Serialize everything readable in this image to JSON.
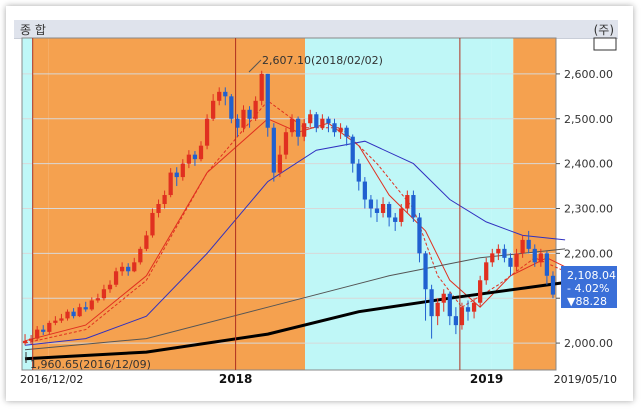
{
  "header": {
    "left_title": "종  합",
    "right_unit": "(주)",
    "icon_name": "lock-icon"
  },
  "annotations": {
    "high": "2,607.10(2018/02/02)",
    "low": "1,960.65(2016/12/09)"
  },
  "value_badge": {
    "price": "2,108.04",
    "change_pct": "- 4.02%",
    "change": "▼88.28",
    "color": "#3a6fd8"
  },
  "colors": {
    "orange_band": "#f5a14f",
    "cyan_band": "#bff7f7",
    "up": "#e03020",
    "down": "#2060d0",
    "ma_red": "#e03020",
    "ma_blue": "#3030c0",
    "ma_gray": "#555555",
    "ma_black": "#000000"
  },
  "chart_data": {
    "type": "candlestick",
    "title": "",
    "y_ticks": [
      "2,600.00",
      "2,500.00",
      "2,400.00",
      "2,300.00",
      "2,200.00",
      "2,100.00",
      "2,000.00"
    ],
    "y_tick_values": [
      2600,
      2500,
      2400,
      2300,
      2200,
      2100,
      2000
    ],
    "ylim": [
      1940,
      2680
    ],
    "x_labels": [
      {
        "text": "2016/12/02",
        "bold": false,
        "pos": 0.0
      },
      {
        "text": "2018",
        "bold": true,
        "pos": 0.4
      },
      {
        "text": "2019",
        "bold": true,
        "pos": 0.87
      },
      {
        "text": "2019/05/10",
        "bold": false,
        "pos": 1.0
      }
    ],
    "bands": [
      {
        "from": 0.0,
        "to": 0.02,
        "color": "cyan"
      },
      {
        "from": 0.02,
        "to": 0.05,
        "color": "orange"
      },
      {
        "from": 0.05,
        "to": 0.53,
        "color": "orange"
      },
      {
        "from": 0.53,
        "to": 0.88,
        "color": "cyan"
      },
      {
        "from": 0.88,
        "to": 0.92,
        "color": "cyan"
      },
      {
        "from": 0.92,
        "to": 1.0,
        "color": "orange"
      }
    ],
    "vlines": [
      0.02,
      0.4,
      0.82
    ],
    "candles": [
      [
        2000,
        2005,
        2020,
        1995
      ],
      [
        2005,
        2010,
        2018,
        1998
      ],
      [
        2010,
        2030,
        2038,
        2005
      ],
      [
        2030,
        2025,
        2040,
        2018
      ],
      [
        2025,
        2045,
        2050,
        2020
      ],
      [
        2045,
        2050,
        2060,
        2040
      ],
      [
        2050,
        2055,
        2065,
        2045
      ],
      [
        2055,
        2070,
        2075,
        2050
      ],
      [
        2070,
        2060,
        2078,
        2055
      ],
      [
        2060,
        2080,
        2088,
        2058
      ],
      [
        2080,
        2075,
        2092,
        2070
      ],
      [
        2075,
        2095,
        2102,
        2072
      ],
      [
        2095,
        2100,
        2110,
        2090
      ],
      [
        2100,
        2120,
        2130,
        2095
      ],
      [
        2120,
        2130,
        2140,
        2112
      ],
      [
        2130,
        2160,
        2168,
        2125
      ],
      [
        2160,
        2170,
        2180,
        2150
      ],
      [
        2170,
        2160,
        2178,
        2150
      ],
      [
        2160,
        2180,
        2190,
        2158
      ],
      [
        2180,
        2210,
        2215,
        2175
      ],
      [
        2210,
        2240,
        2250,
        2205
      ],
      [
        2240,
        2290,
        2300,
        2235
      ],
      [
        2290,
        2310,
        2320,
        2280
      ],
      [
        2310,
        2330,
        2340,
        2300
      ],
      [
        2330,
        2380,
        2390,
        2325
      ],
      [
        2380,
        2370,
        2392,
        2350
      ],
      [
        2370,
        2400,
        2410,
        2362
      ],
      [
        2400,
        2420,
        2430,
        2390
      ],
      [
        2420,
        2410,
        2428,
        2395
      ],
      [
        2410,
        2440,
        2450,
        2405
      ],
      [
        2440,
        2500,
        2510,
        2432
      ],
      [
        2500,
        2540,
        2555,
        2495
      ],
      [
        2540,
        2560,
        2570,
        2530
      ],
      [
        2560,
        2550,
        2570,
        2530
      ],
      [
        2550,
        2500,
        2555,
        2490
      ],
      [
        2500,
        2480,
        2510,
        2460
      ],
      [
        2480,
        2520,
        2530,
        2470
      ],
      [
        2520,
        2500,
        2528,
        2480
      ],
      [
        2500,
        2540,
        2550,
        2495
      ],
      [
        2540,
        2600,
        2607,
        2530
      ],
      [
        2600,
        2480,
        2600,
        2460
      ],
      [
        2480,
        2380,
        2490,
        2360
      ],
      [
        2380,
        2420,
        2440,
        2370
      ],
      [
        2420,
        2470,
        2480,
        2410
      ],
      [
        2470,
        2500,
        2510,
        2460
      ],
      [
        2500,
        2460,
        2505,
        2440
      ],
      [
        2460,
        2490,
        2500,
        2450
      ],
      [
        2490,
        2510,
        2520,
        2480
      ],
      [
        2510,
        2480,
        2515,
        2470
      ],
      [
        2480,
        2500,
        2510,
        2475
      ],
      [
        2500,
        2490,
        2505,
        2470
      ],
      [
        2490,
        2470,
        2500,
        2460
      ],
      [
        2470,
        2480,
        2490,
        2455
      ],
      [
        2480,
        2460,
        2485,
        2440
      ],
      [
        2460,
        2400,
        2465,
        2380
      ],
      [
        2400,
        2360,
        2410,
        2340
      ],
      [
        2360,
        2320,
        2370,
        2300
      ],
      [
        2320,
        2300,
        2330,
        2280
      ],
      [
        2300,
        2290,
        2320,
        2270
      ],
      [
        2290,
        2310,
        2325,
        2280
      ],
      [
        2310,
        2280,
        2315,
        2260
      ],
      [
        2280,
        2270,
        2290,
        2250
      ],
      [
        2270,
        2300,
        2310,
        2260
      ],
      [
        2300,
        2330,
        2340,
        2290
      ],
      [
        2330,
        2280,
        2340,
        2270
      ],
      [
        2280,
        2200,
        2290,
        2180
      ],
      [
        2200,
        2120,
        2205,
        2050
      ],
      [
        2120,
        2060,
        2130,
        2010
      ],
      [
        2060,
        2090,
        2100,
        2040
      ],
      [
        2090,
        2110,
        2120,
        2070
      ],
      [
        2110,
        2060,
        2115,
        2040
      ],
      [
        2060,
        2040,
        2080,
        2020
      ],
      [
        2040,
        2080,
        2090,
        2030
      ],
      [
        2080,
        2070,
        2095,
        2050
      ],
      [
        2070,
        2090,
        2100,
        2055
      ],
      [
        2090,
        2140,
        2150,
        2080
      ],
      [
        2140,
        2180,
        2190,
        2130
      ],
      [
        2180,
        2200,
        2210,
        2170
      ],
      [
        2200,
        2210,
        2220,
        2185
      ],
      [
        2210,
        2190,
        2220,
        2180
      ],
      [
        2190,
        2170,
        2200,
        2150
      ],
      [
        2170,
        2200,
        2210,
        2160
      ],
      [
        2200,
        2230,
        2240,
        2190
      ],
      [
        2230,
        2210,
        2250,
        2200
      ],
      [
        2210,
        2180,
        2220,
        2170
      ],
      [
        2180,
        2200,
        2210,
        2170
      ],
      [
        2200,
        2150,
        2205,
        2130
      ],
      [
        2150,
        2108,
        2160,
        2100
      ]
    ],
    "moving_averages": [
      {
        "id": "ma-red",
        "points": [
          [
            0,
            2005
          ],
          [
            10,
            2040
          ],
          [
            20,
            2150
          ],
          [
            30,
            2380
          ],
          [
            40,
            2500
          ],
          [
            45,
            2470
          ],
          [
            50,
            2490
          ],
          [
            55,
            2440
          ],
          [
            60,
            2330
          ],
          [
            66,
            2250
          ],
          [
            70,
            2140
          ],
          [
            75,
            2080
          ],
          [
            80,
            2150
          ],
          [
            86,
            2190
          ],
          [
            89,
            2170
          ]
        ]
      },
      {
        "id": "ma-red-dashed",
        "points": [
          [
            0,
            2000
          ],
          [
            10,
            2030
          ],
          [
            20,
            2140
          ],
          [
            30,
            2380
          ],
          [
            40,
            2540
          ],
          [
            46,
            2480
          ],
          [
            52,
            2480
          ],
          [
            58,
            2400
          ],
          [
            64,
            2300
          ],
          [
            68,
            2150
          ],
          [
            72,
            2080
          ],
          [
            78,
            2130
          ],
          [
            84,
            2190
          ],
          [
            89,
            2160
          ]
        ]
      },
      {
        "id": "ma-blue",
        "points": [
          [
            0,
            1995
          ],
          [
            10,
            2010
          ],
          [
            20,
            2060
          ],
          [
            30,
            2200
          ],
          [
            40,
            2360
          ],
          [
            48,
            2430
          ],
          [
            56,
            2450
          ],
          [
            64,
            2400
          ],
          [
            70,
            2320
          ],
          [
            76,
            2270
          ],
          [
            82,
            2240
          ],
          [
            89,
            2230
          ]
        ]
      },
      {
        "id": "ma-gray",
        "points": [
          [
            0,
            1985
          ],
          [
            20,
            2010
          ],
          [
            40,
            2080
          ],
          [
            60,
            2150
          ],
          [
            75,
            2190
          ],
          [
            89,
            2210
          ]
        ]
      },
      {
        "id": "ma-black",
        "points": [
          [
            0,
            1965
          ],
          [
            20,
            1980
          ],
          [
            40,
            2020
          ],
          [
            55,
            2070
          ],
          [
            70,
            2100
          ],
          [
            89,
            2135
          ]
        ]
      }
    ]
  }
}
